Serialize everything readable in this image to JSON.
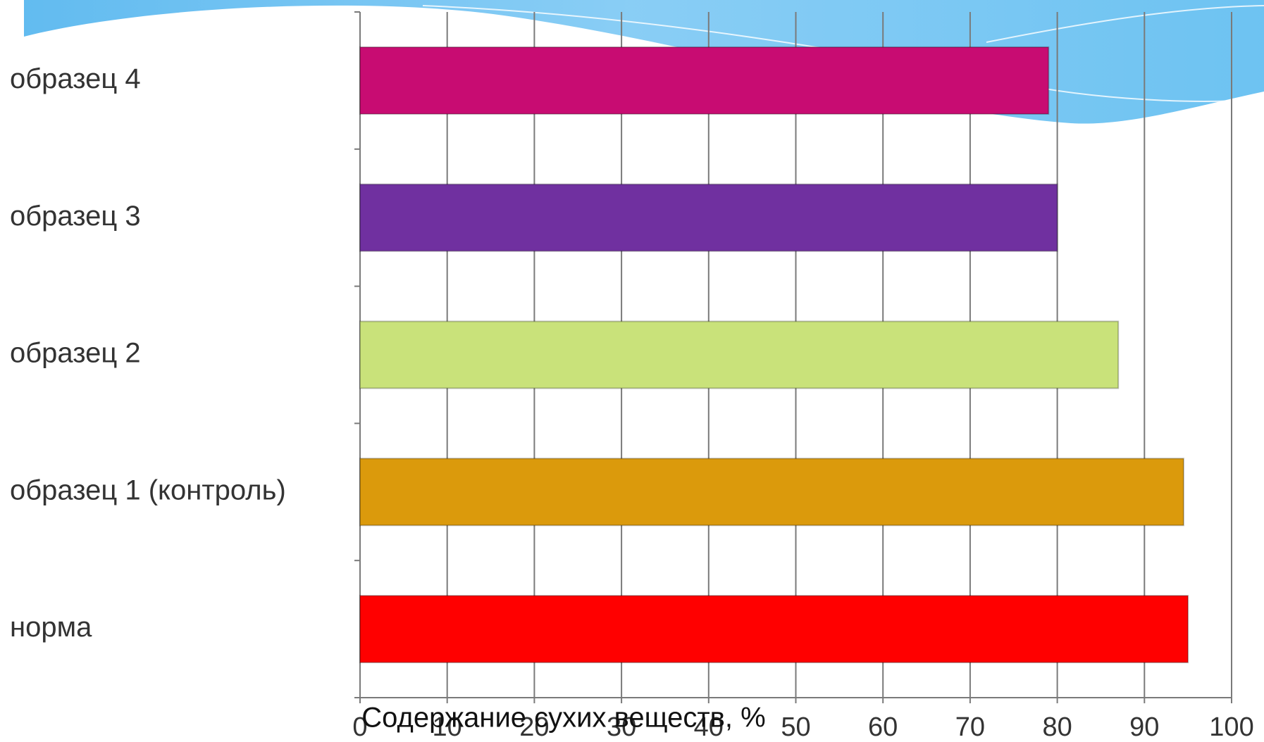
{
  "chart_data": {
    "type": "bar",
    "orientation": "horizontal",
    "x_label": "Содержание сухих веществ, %",
    "categories": [
      "образец 4",
      "образец 3",
      "образец 2",
      "образец 1  (контроль)",
      "норма"
    ],
    "values": [
      79,
      80,
      87,
      94.5,
      95
    ],
    "colors": [
      "#c80c72",
      "#7030a0",
      "#c9e27a",
      "#db9a0c",
      "#ff0000"
    ],
    "xlim": [
      0,
      100
    ],
    "xticks": [
      0,
      10,
      20,
      30,
      40,
      50,
      60,
      70,
      80,
      90,
      100
    ],
    "grid": true
  }
}
